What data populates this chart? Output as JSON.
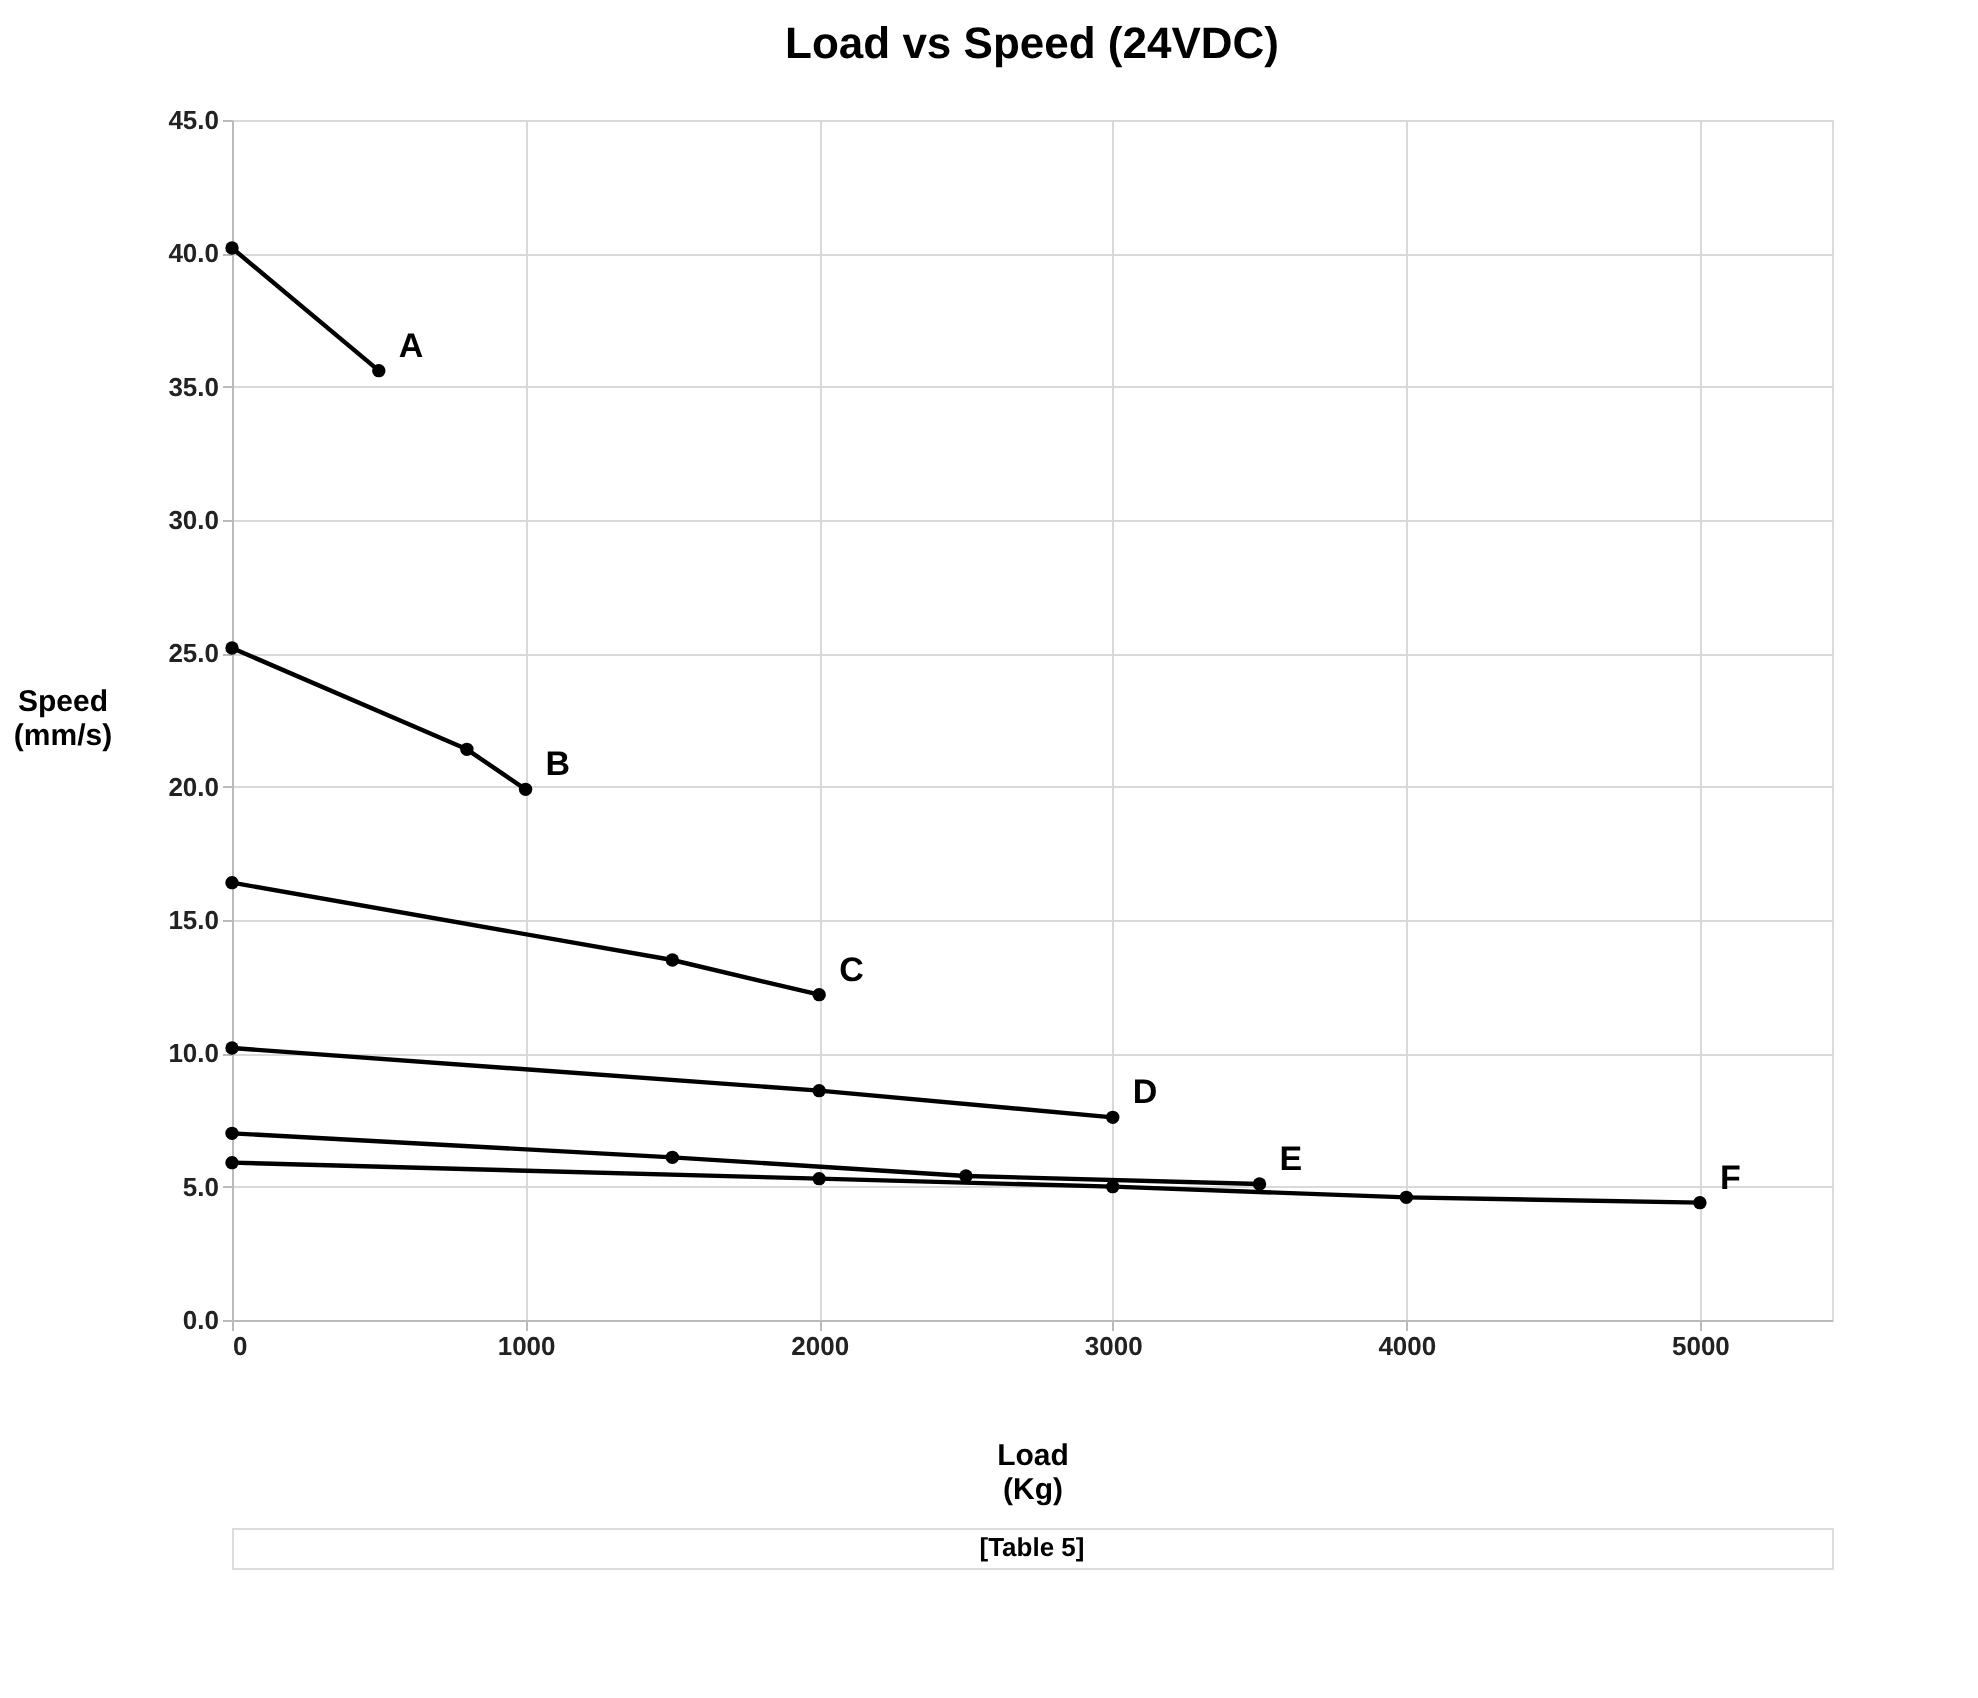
{
  "chart_data": {
    "type": "line",
    "title": "Load vs Speed (24VDC)",
    "xlabel": "Load\n(Kg)",
    "ylabel": "Speed\n(mm/s)",
    "xlim": [
      0,
      5450
    ],
    "xticks": [
      0,
      1000,
      2000,
      3000,
      4000,
      5000
    ],
    "ylim": [
      0,
      45
    ],
    "yticks": [
      {
        "value": 0,
        "label": "0.0"
      },
      {
        "value": 5,
        "label": "5.0"
      },
      {
        "value": 10,
        "label": "10.0"
      },
      {
        "value": 15,
        "label": "15.0"
      },
      {
        "value": 20,
        "label": "20.0"
      },
      {
        "value": 25,
        "label": "25.0"
      },
      {
        "value": 30,
        "label": "30.0"
      },
      {
        "value": 35,
        "label": "35.0"
      },
      {
        "value": 40,
        "label": "40.0"
      },
      {
        "value": 45,
        "label": "45.0"
      }
    ],
    "grid": true,
    "marker": "circle",
    "line_style": "solid",
    "series": [
      {
        "name": "A",
        "color": "#000000",
        "x": [
          0,
          500
        ],
        "values": [
          40.2,
          35.6
        ]
      },
      {
        "name": "B",
        "color": "#000000",
        "x": [
          0,
          800,
          1000
        ],
        "values": [
          25.2,
          21.4,
          19.9
        ]
      },
      {
        "name": "C",
        "color": "#000000",
        "x": [
          0,
          1500,
          2000
        ],
        "values": [
          16.4,
          13.5,
          12.2
        ]
      },
      {
        "name": "D",
        "color": "#000000",
        "x": [
          0,
          2000,
          3000
        ],
        "values": [
          10.2,
          8.6,
          7.6
        ]
      },
      {
        "name": "E",
        "color": "#000000",
        "x": [
          0,
          1500,
          2500,
          3500
        ],
        "values": [
          7.0,
          6.1,
          5.4,
          5.1
        ]
      },
      {
        "name": "F",
        "color": "#000000",
        "x": [
          0,
          2000,
          3000,
          4000,
          5000
        ],
        "values": [
          5.9,
          5.3,
          5.0,
          4.6,
          4.4
        ]
      }
    ],
    "annotations": [
      "[Table 5]"
    ]
  }
}
